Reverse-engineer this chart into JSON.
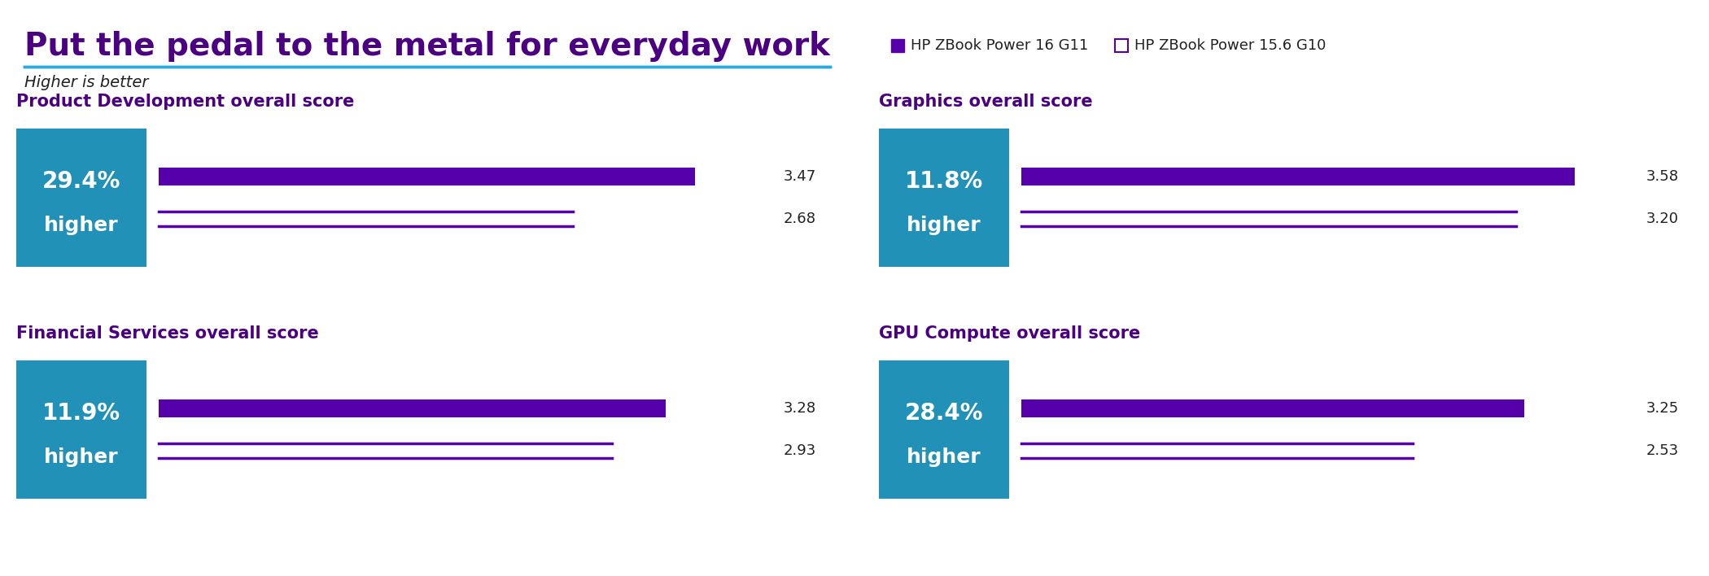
{
  "title": "Put the pedal to the metal for everyday work",
  "subtitle": "Higher is better",
  "title_color": "#4B0082",
  "title_underline_color": "#29ABE2",
  "subtitle_color": "#222222",
  "legend": {
    "g11_label": "HP ZBook Power 16 G11",
    "g10_label": "HP ZBook Power 15.6 G10",
    "g11_color": "#5500AA",
    "g10_color": "#FFFFFF",
    "g10_border": "#5500AA"
  },
  "box_color": "#2191B8",
  "bar_g11_color": "#5500AA",
  "bar_g10_color": "#5500AA",
  "charts": [
    {
      "title": "Product Development overall score",
      "pct": "29.4%",
      "g11": 3.47,
      "g10": 2.68,
      "max_val": 4.0,
      "col": 0,
      "row": 0
    },
    {
      "title": "Graphics overall score",
      "pct": "11.8%",
      "g11": 3.58,
      "g10": 3.2,
      "max_val": 4.0,
      "col": 1,
      "row": 0
    },
    {
      "title": "Financial Services overall score",
      "pct": "11.9%",
      "g11": 3.28,
      "g10": 2.93,
      "max_val": 4.0,
      "col": 0,
      "row": 1
    },
    {
      "title": "GPU Compute overall score",
      "pct": "28.4%",
      "g11": 3.25,
      "g10": 2.53,
      "max_val": 4.0,
      "col": 1,
      "row": 1
    }
  ]
}
